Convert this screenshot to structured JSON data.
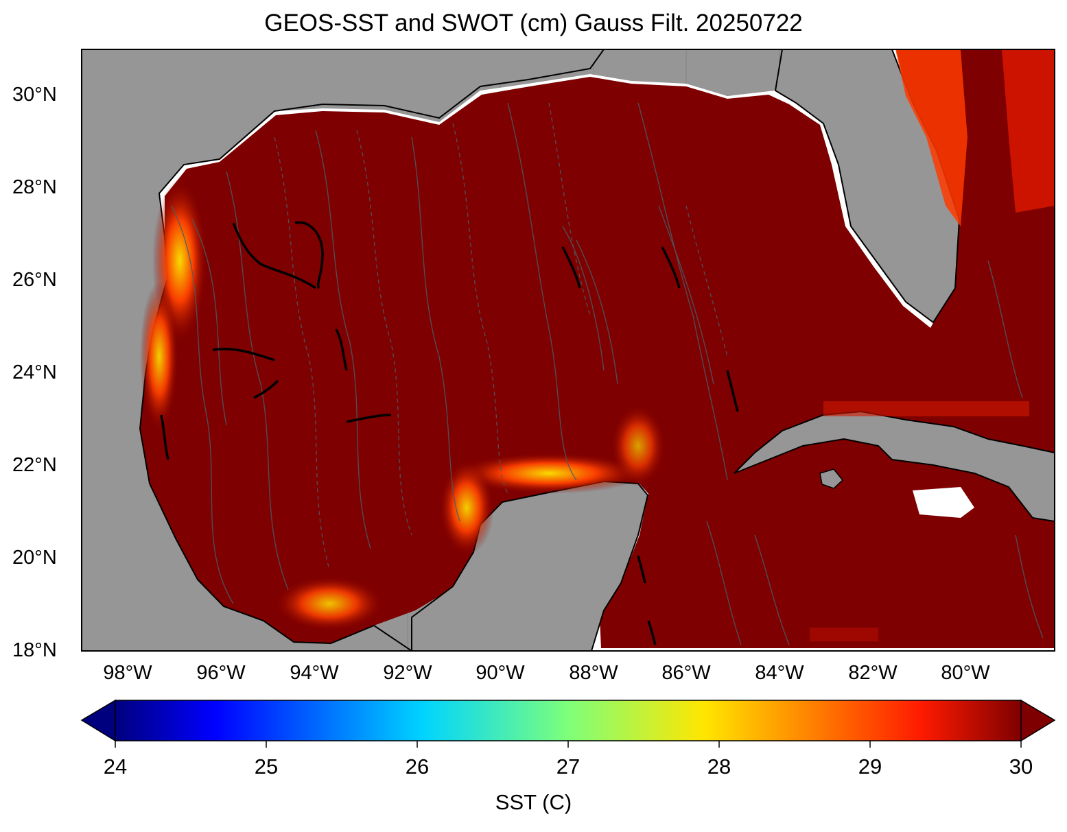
{
  "title": "GEOS-SST  and SWOT (cm) Gauss Filt. 20250722",
  "lat_ticks": [
    "30°N",
    "28°N",
    "26°N",
    "24°N",
    "22°N",
    "20°N",
    "18°N"
  ],
  "lon_ticks": [
    "98°W",
    "96°W",
    "94°W",
    "92°W",
    "90°W",
    "88°W",
    "86°W",
    "84°W",
    "82°W",
    "80°W"
  ],
  "colorbar": {
    "label": "SST (C)",
    "ticks": [
      "24",
      "25",
      "26",
      "27",
      "28",
      "29",
      "30"
    ],
    "colormap": "jet",
    "extend": "both"
  },
  "colors": {
    "land": "#969696",
    "ocean_warm": "#7f0000",
    "missing": "#ffffff",
    "contour": "#4a5a66"
  }
}
